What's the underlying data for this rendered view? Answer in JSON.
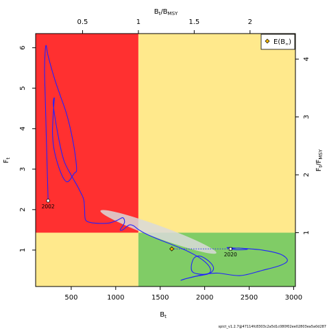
{
  "chart_data": {
    "type": "line",
    "xlabel": "B",
    "xlabel_sub": "t",
    "ylabel": "F",
    "ylabel_sub": "t",
    "top_label": "B",
    "top_label_sub1": "t",
    "top_label_slash": "/B",
    "top_label_sub2": "MSY",
    "right_label": "F",
    "right_label_sub1": "t",
    "right_label_slash": "/F",
    "right_label_sub2": "MSY",
    "xlim": [
      100,
      3020
    ],
    "ylim": [
      0.1,
      6.35
    ],
    "x_ticks": [
      "500",
      "1000",
      "1500",
      "2000",
      "2500",
      "3000"
    ],
    "y_ticks": [
      "1",
      "2",
      "3",
      "4",
      "5",
      "6"
    ],
    "top_ticks": [
      "0.5",
      "1",
      "1.5",
      "2"
    ],
    "right_ticks": [
      "1",
      "2",
      "3",
      "4"
    ],
    "bmsy": 1255,
    "fmsy": 1.43,
    "zones": {
      "red": "#ff3030",
      "yellow": "#ffe98c",
      "green": "#80cc66",
      "line": "#2020ff",
      "ellipse": "#d9d9d9"
    },
    "legend": {
      "label": "E(B",
      "label_sub": "∞",
      "label_end": ")",
      "position": "top-right"
    },
    "start_label": "2002",
    "end_label": "2020",
    "start_point": [
      240,
      2.22
    ],
    "end_point": [
      2290,
      1.03
    ],
    "equilibrium_point": [
      1630,
      1.03
    ],
    "trajectory": [
      [
        240,
        2.22
      ],
      [
        210,
        4.6
      ],
      [
        200,
        5.5
      ],
      [
        215,
        6.05
      ],
      [
        240,
        5.8
      ],
      [
        310,
        5.25
      ],
      [
        380,
        4.8
      ],
      [
        450,
        4.35
      ],
      [
        510,
        3.8
      ],
      [
        548,
        3.3
      ],
      [
        560,
        2.97
      ],
      [
        535,
        2.9
      ],
      [
        470,
        2.7
      ],
      [
        420,
        2.75
      ],
      [
        360,
        3.05
      ],
      [
        310,
        3.45
      ],
      [
        290,
        3.85
      ],
      [
        295,
        4.25
      ],
      [
        310,
        4.75
      ],
      [
        300,
        4.55
      ],
      [
        360,
        3.75
      ],
      [
        420,
        3.2
      ],
      [
        500,
        2.85
      ],
      [
        560,
        2.62
      ],
      [
        600,
        2.45
      ],
      [
        640,
        2.25
      ],
      [
        650,
        2.0
      ],
      [
        660,
        1.75
      ],
      [
        720,
        1.68
      ],
      [
        820,
        1.66
      ],
      [
        930,
        1.67
      ],
      [
        1020,
        1.74
      ],
      [
        1080,
        1.8
      ],
      [
        1100,
        1.7
      ],
      [
        1080,
        1.6
      ],
      [
        1050,
        1.5
      ],
      [
        1080,
        1.5
      ],
      [
        1150,
        1.62
      ],
      [
        1200,
        1.6
      ],
      [
        1260,
        1.5
      ],
      [
        1360,
        1.38
      ],
      [
        1500,
        1.25
      ],
      [
        1650,
        1.12
      ],
      [
        1800,
        0.98
      ],
      [
        1950,
        0.8
      ],
      [
        2050,
        0.6
      ],
      [
        2060,
        0.45
      ],
      [
        1980,
        0.4
      ],
      [
        1870,
        0.45
      ],
      [
        1850,
        0.6
      ],
      [
        1880,
        0.8
      ],
      [
        1950,
        0.85
      ],
      [
        2050,
        0.72
      ],
      [
        2100,
        0.55
      ],
      [
        2050,
        0.42
      ],
      [
        1900,
        0.35
      ],
      [
        1800,
        0.3
      ],
      [
        1730,
        0.25
      ],
      [
        1800,
        0.3
      ],
      [
        2000,
        0.4
      ],
      [
        2150,
        0.43
      ],
      [
        2400,
        0.37
      ],
      [
        2650,
        0.5
      ],
      [
        2860,
        0.63
      ],
      [
        2930,
        0.75
      ],
      [
        2850,
        0.9
      ],
      [
        2650,
        1.0
      ],
      [
        2450,
        1.04
      ],
      [
        2340,
        1.05
      ],
      [
        2250,
        1.06
      ],
      [
        2350,
        1.01
      ],
      [
        2480,
        1.02
      ],
      [
        2380,
        1.05
      ],
      [
        2290,
        1.03
      ]
    ],
    "equilibrium_segment": [
      [
        1630,
        1.03
      ],
      [
        2290,
        1.03
      ]
    ]
  },
  "footer": "spict_v1.2.7@47114fc8303c2a5d1c080f02ee02803ea5a0d287"
}
